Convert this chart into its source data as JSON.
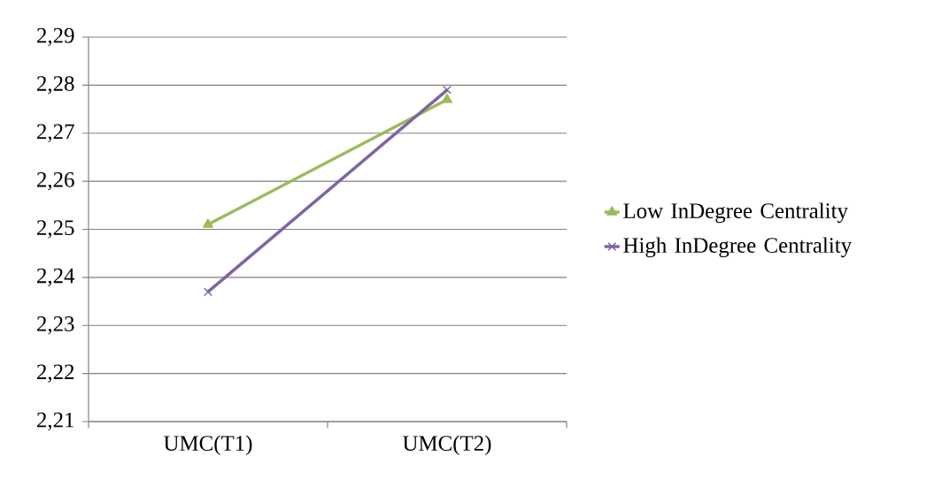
{
  "chart_data": {
    "type": "line",
    "categories": [
      "UMC(T1)",
      "UMC(T2)"
    ],
    "series": [
      {
        "name": "Low InDegree Centrality",
        "color": "#9bbb59",
        "marker": "triangle",
        "values": [
          2.251,
          2.277
        ]
      },
      {
        "name": "High InDegree Centrality",
        "color": "#8064a2",
        "marker": "cross",
        "values": [
          2.237,
          2.279
        ]
      }
    ],
    "ylim": [
      2.21,
      2.29
    ],
    "yticks": [
      {
        "value": 2.21,
        "label": "2,21"
      },
      {
        "value": 2.22,
        "label": "2,22"
      },
      {
        "value": 2.23,
        "label": "2,23"
      },
      {
        "value": 2.24,
        "label": "2,24"
      },
      {
        "value": 2.25,
        "label": "2,25"
      },
      {
        "value": 2.26,
        "label": "2,26"
      },
      {
        "value": 2.27,
        "label": "2,27"
      },
      {
        "value": 2.28,
        "label": "2,28"
      },
      {
        "value": 2.29,
        "label": "2,29"
      }
    ],
    "grid": "y",
    "legend": "right",
    "line_style": "solid"
  }
}
